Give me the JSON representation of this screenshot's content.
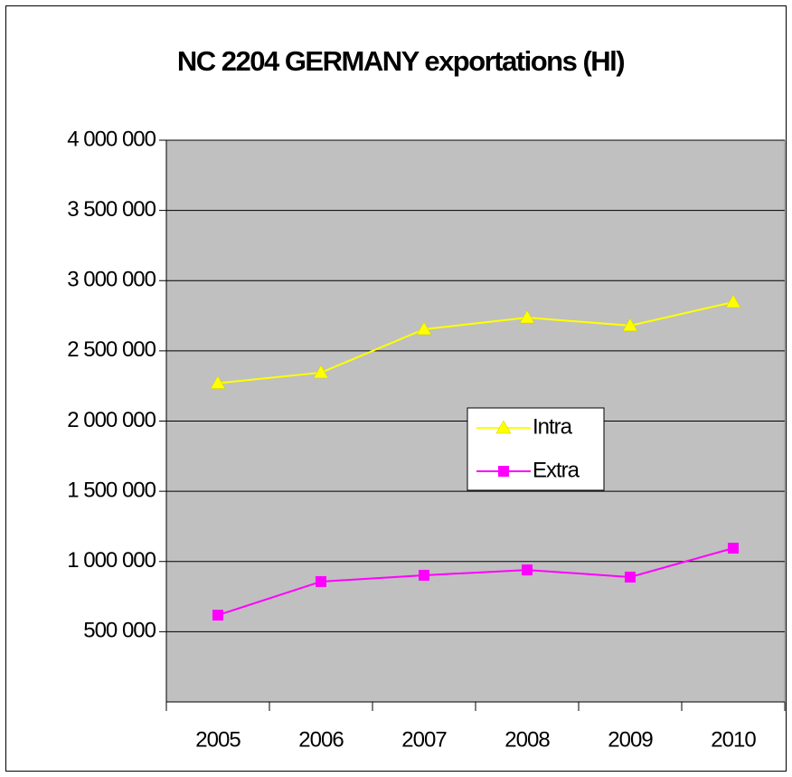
{
  "chart_data": {
    "type": "line",
    "title": "NC 2204 GERMANY exportations  (Hl)",
    "categories": [
      "2005",
      "2006",
      "2007",
      "2008",
      "2009",
      "2010"
    ],
    "series": [
      {
        "name": "Intra",
        "color": "#ffff00",
        "marker": "triangle",
        "values": [
          2270000,
          2345000,
          2654000,
          2737000,
          2680000,
          2847000
        ]
      },
      {
        "name": "Extra",
        "color": "#ff00ff",
        "marker": "square",
        "values": [
          618000,
          857000,
          902000,
          940000,
          889000,
          1095000
        ]
      }
    ],
    "ylim": [
      0,
      4000000
    ],
    "yticks": [
      {
        "value": 500000,
        "label": "500 000"
      },
      {
        "value": 1000000,
        "label": "1 000 000"
      },
      {
        "value": 1500000,
        "label": "1 500 000"
      },
      {
        "value": 2000000,
        "label": "2 000 000"
      },
      {
        "value": 2500000,
        "label": "2 500 000"
      },
      {
        "value": 3000000,
        "label": "3 000 000"
      },
      {
        "value": 3500000,
        "label": "3 500 000"
      },
      {
        "value": 4000000,
        "label": "4 000 000"
      }
    ],
    "grid": true,
    "plot_background": "#c0c0c0"
  }
}
